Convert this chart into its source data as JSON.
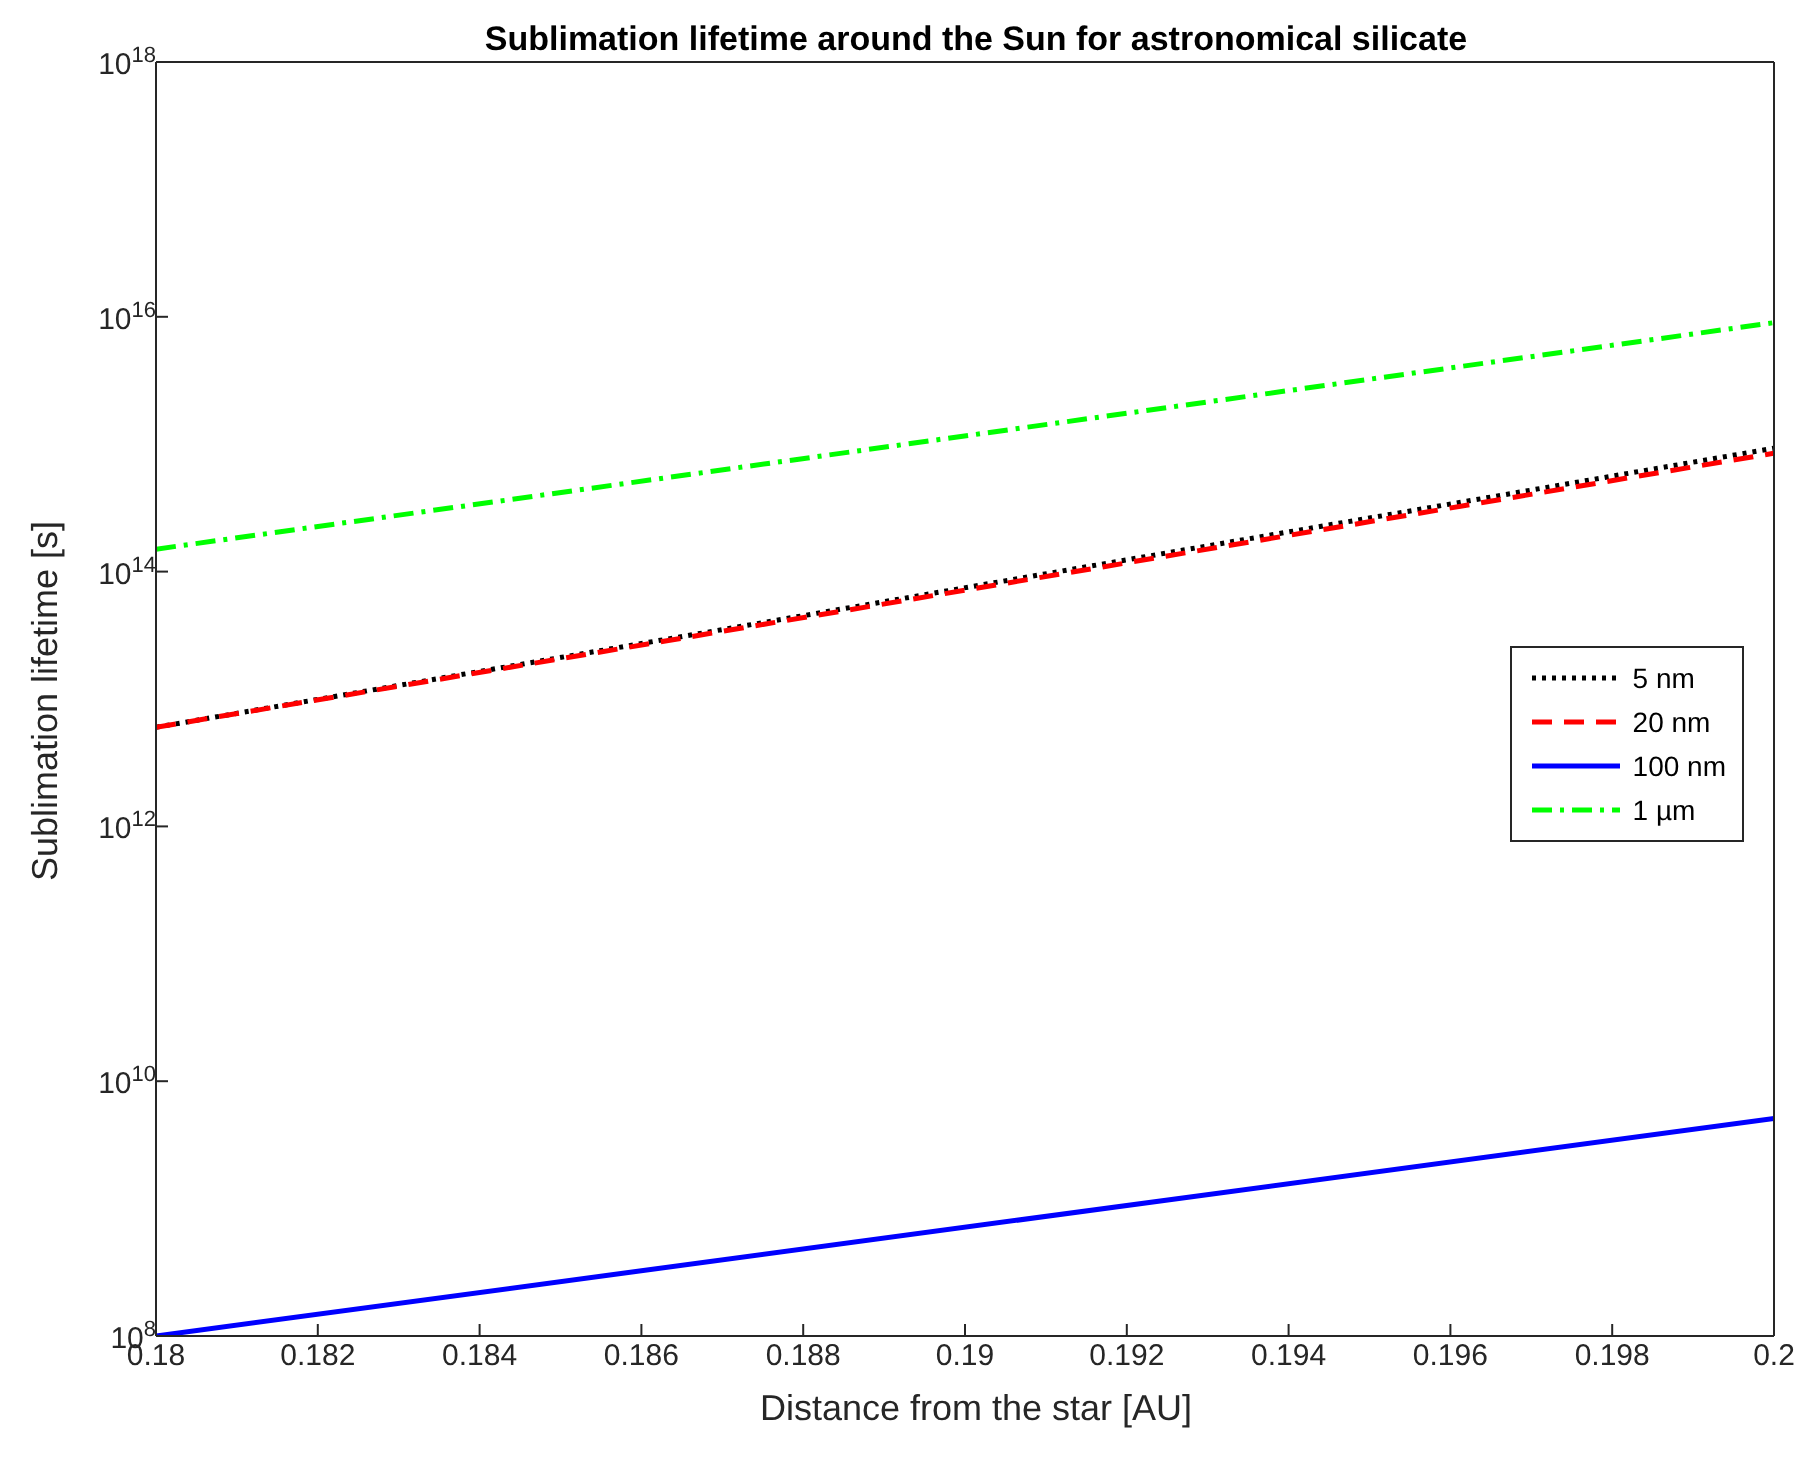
{
  "chart_data": {
    "type": "line",
    "title": "Sublimation lifetime around the Sun for astronomical silicate",
    "xlabel": "Distance from the star [AU]",
    "ylabel": "Sublimation lifetime [s]",
    "log": "y",
    "xlim": [
      0.18,
      0.2
    ],
    "xticks": [
      0.18,
      0.182,
      0.184,
      0.186,
      0.188,
      0.19,
      0.192,
      0.194,
      0.196,
      0.198,
      0.2
    ],
    "ylim": [
      100000000.0,
      1e+18
    ],
    "yticks": [
      {
        "value": 100000000.0,
        "label": "10$^{8}$"
      },
      {
        "value": 10000000000.0,
        "label": "10$^{10}$"
      },
      {
        "value": 1000000000000.0,
        "label": "10$^{12}$"
      },
      {
        "value": 100000000000000.0,
        "label": "10$^{14}$"
      },
      {
        "value": 1e+16,
        "label": "10$^{16}$"
      },
      {
        "value": 1e+18,
        "label": "10$^{18}$"
      }
    ],
    "legend": "right",
    "marker": "none",
    "x": [
      0.18,
      0.2
    ],
    "series": [
      {
        "name": "5 nm",
        "color": "#000000",
        "line_style": "dotted",
        "values": [
          6000000000000.0,
          930000000000000.0
        ]
      },
      {
        "name": "20 nm",
        "color": "#ff0000",
        "line_style": "dashed",
        "values": [
          6000000000000.0,
          850000000000000.0
        ]
      },
      {
        "name": "100 nm",
        "color": "#0000ff",
        "line_style": "solid",
        "values": [
          100000000.0,
          5100000000.0
        ]
      },
      {
        "name": "1 µm",
        "color": "#00ff00",
        "line_style": "dashdot",
        "values": [
          150000000000000.0,
          9000000000000000.0
        ]
      }
    ]
  }
}
